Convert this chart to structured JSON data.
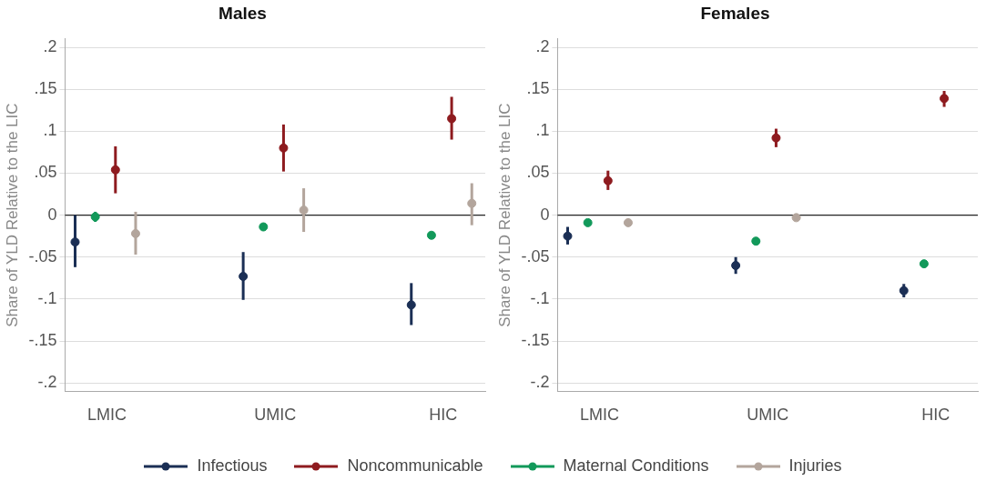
{
  "chart_data": [
    {
      "type": "scatter",
      "title": "Males",
      "ylabel": "Share of YLD Relative to the LIC",
      "categories": [
        "LMIC",
        "UMIC",
        "HIC"
      ],
      "ylim": [
        -0.21,
        0.21
      ],
      "yticks": [
        {
          "value": 0.2,
          "label": ".2"
        },
        {
          "value": 0.15,
          "label": ".15"
        },
        {
          "value": 0.1,
          "label": ".1"
        },
        {
          "value": 0.05,
          "label": ".05"
        },
        0,
        {
          "value": -0.05,
          "label": "-.05"
        },
        {
          "value": -0.1,
          "label": "-.1"
        },
        {
          "value": -0.15,
          "label": "-.15"
        },
        {
          "value": -0.2,
          "label": "-.2"
        }
      ],
      "grid": "y",
      "marker": "circle",
      "legend": "bottom",
      "ref_lines": [
        {
          "axis": "y",
          "value": 0,
          "color": "#222222"
        }
      ],
      "series": [
        {
          "name": "Infectious",
          "color": "#1b2f55",
          "values": [
            -0.032,
            -0.073,
            -0.107
          ],
          "errors": [
            [
              -0.062,
              0
            ],
            [
              -0.101,
              -0.044
            ],
            [
              -0.131,
              -0.081
            ]
          ]
        },
        {
          "name": "Maternal Conditions",
          "color": "#12995a",
          "values": [
            -0.002,
            -0.014,
            -0.024
          ],
          "errors": [
            [
              -0.008,
              0.004
            ],
            [
              -0.016,
              -0.012
            ],
            [
              -0.026,
              -0.022
            ]
          ]
        },
        {
          "name": "Noncommunicable",
          "color": "#8e1b1f",
          "values": [
            0.054,
            0.08,
            0.115
          ],
          "errors": [
            [
              0.026,
              0.082
            ],
            [
              0.052,
              0.108
            ],
            [
              0.09,
              0.141
            ]
          ]
        },
        {
          "name": "Injuries",
          "color": "#b3a59c",
          "values": [
            -0.022,
            0.006,
            0.014
          ],
          "errors": [
            [
              -0.047,
              0.004
            ],
            [
              -0.02,
              0.032
            ],
            [
              -0.012,
              0.038
            ]
          ]
        }
      ]
    },
    {
      "type": "scatter",
      "title": "Females",
      "ylabel": "Share of YLD Relative to the LIC",
      "categories": [
        "LMIC",
        "UMIC",
        "HIC"
      ],
      "ylim": [
        -0.21,
        0.21
      ],
      "yticks": [
        {
          "value": 0.2,
          "label": ".2"
        },
        {
          "value": 0.15,
          "label": ".15"
        },
        {
          "value": 0.1,
          "label": ".1"
        },
        {
          "value": 0.05,
          "label": ".05"
        },
        0,
        {
          "value": -0.05,
          "label": "-.05"
        },
        {
          "value": -0.1,
          "label": "-.1"
        },
        {
          "value": -0.15,
          "label": "-.15"
        },
        {
          "value": -0.2,
          "label": "-.2"
        }
      ],
      "grid": "y",
      "marker": "circle",
      "ref_lines": [
        {
          "axis": "y",
          "value": 0,
          "color": "#222222"
        }
      ],
      "series": [
        {
          "color": "#1b2f55",
          "values": [
            -0.025,
            -0.06,
            -0.09
          ],
          "errors": [
            [
              -0.035,
              -0.014
            ],
            [
              -0.07,
              -0.05
            ],
            [
              -0.098,
              -0.082
            ]
          ]
        },
        {
          "color": "#12995a",
          "values": [
            -0.009,
            -0.031,
            -0.058
          ],
          "errors": [
            [
              -0.011,
              -0.007
            ],
            [
              -0.034,
              -0.028
            ],
            [
              -0.06,
              -0.056
            ]
          ]
        },
        {
          "color": "#8e1b1f",
          "values": [
            0.041,
            0.092,
            0.139
          ],
          "errors": [
            [
              0.03,
              0.053
            ],
            [
              0.081,
              0.103
            ],
            [
              0.129,
              0.148
            ]
          ]
        },
        {
          "color": "#b3a59c",
          "values": [
            -0.009,
            -0.003,
            null
          ],
          "errors": [
            [
              -0.01,
              -0.008
            ],
            [
              -0.005,
              -0.001
            ],
            null
          ]
        }
      ]
    }
  ]
}
